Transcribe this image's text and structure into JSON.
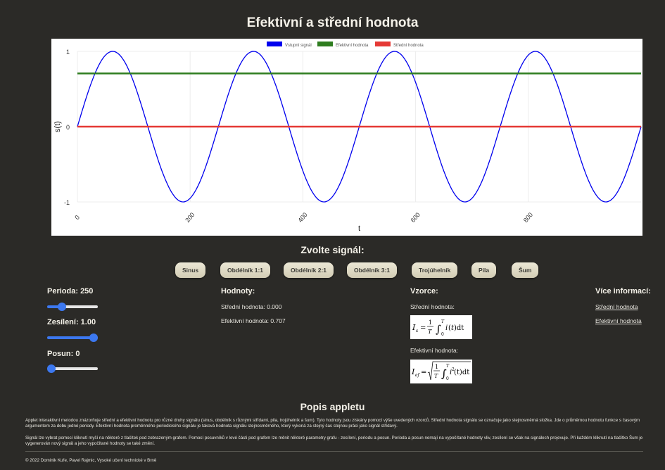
{
  "page": {
    "title": "Efektivní a střední hodnota"
  },
  "chart_data": {
    "type": "line",
    "title": "",
    "xlabel": "t",
    "ylabel": "s(t)",
    "xlim": [
      0,
      1000
    ],
    "ylim": [
      -1,
      1
    ],
    "x_ticks": [
      "0",
      "200",
      "400",
      "600",
      "800"
    ],
    "y_ticks": [
      "1",
      "0",
      "-1"
    ],
    "legend_position": "top",
    "grid": true,
    "series": [
      {
        "name": "Vstupní signál",
        "color": "#0000ee",
        "function": "sine",
        "period": 250,
        "amplitude": 1,
        "offset": 0
      },
      {
        "name": "Efektivní hodnota",
        "color": "#2e7d1f",
        "constant": 0.707
      },
      {
        "name": "Střední hodnota",
        "color": "#e53935",
        "constant": 0
      }
    ]
  },
  "signal": {
    "heading": "Zvolte signál:",
    "buttons": [
      "Sinus",
      "Obdélník 1:1",
      "Obdélník 2:1",
      "Obdélník 3:1",
      "Trojúhelník",
      "Pila",
      "Šum"
    ]
  },
  "controls": {
    "period_label": "Perioda: 250",
    "period_value": 0.25,
    "gain_label": "Zesílení: 1.00",
    "gain_value": 1.0,
    "shift_label": "Posun: 0",
    "shift_value": 0.0
  },
  "values": {
    "heading": "Hodnoty:",
    "mean": "Střední hodnota: 0.000",
    "rms": "Efektivní hodnota: 0.707"
  },
  "formulas": {
    "heading": "Vzorce:",
    "mean_label": "Střední hodnota:",
    "rms_label": "Efektivní hodnota:"
  },
  "info": {
    "heading": "Více informací:",
    "links": [
      "Střední hodnota",
      "Efektivní hodnota"
    ]
  },
  "description": {
    "heading": "Popis appletu",
    "p1": "Applet interaktivní metodou znázorňuje střední a efektivní hodnotu pro různé druhy signálu (sinus, obdélník s různými střídami, pila, trojúhelník a šum). Tyto hodnoty jsou získány pomocí výše uvedených vzorců. Střední hodnota signálu se označuje jako stejnosměrná složka. Jde o průměrnou hodnotu funkce s časovým argumentem za dobu jedné periody. Efektivní hodnota proměnného periodického signálu je taková hodnota signálu stejnosměrného, který vykoná za stejný čas stejnou práci jako signál střídavý.",
    "p2": "Signál lze vybrat pomocí kliknutí myší na některé z tlačítek pod zobrazeným grafem. Pomocí posuvníků v levé části pod grafem lze měnit některé parametry grafu - zesílení, periodu a posun. Perioda a posun nemají na vypočítané hodnoty vliv, zesílení se však na signálech projevuje. Při každém kliknutí na tlačítko Šum je vygenerován nový signál a jeho vypočítané hodnoty se také změní."
  },
  "footer": {
    "text": "© 2022 Dominik Kuře, Pavel Rajmic, Vysoké učení technické v Brně"
  }
}
